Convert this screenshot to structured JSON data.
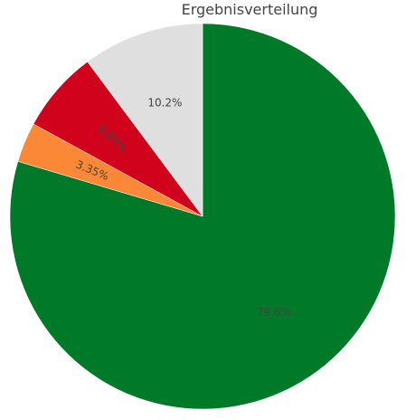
{
  "chart_data": {
    "type": "pie",
    "title": "Ergebnisverteilung",
    "slices": [
      {
        "label": "79.6%",
        "value": 79.6,
        "color": "#007a28"
      },
      {
        "label": "3.35%",
        "value": 3.35,
        "color": "#fb8836"
      },
      {
        "label": "6.85%",
        "value": 6.85,
        "color": "#d1021c"
      },
      {
        "label": "10.2%",
        "value": 10.2,
        "color": "#e0dfe0"
      }
    ],
    "start": "top",
    "direction": "clockwise",
    "legend": "none"
  }
}
